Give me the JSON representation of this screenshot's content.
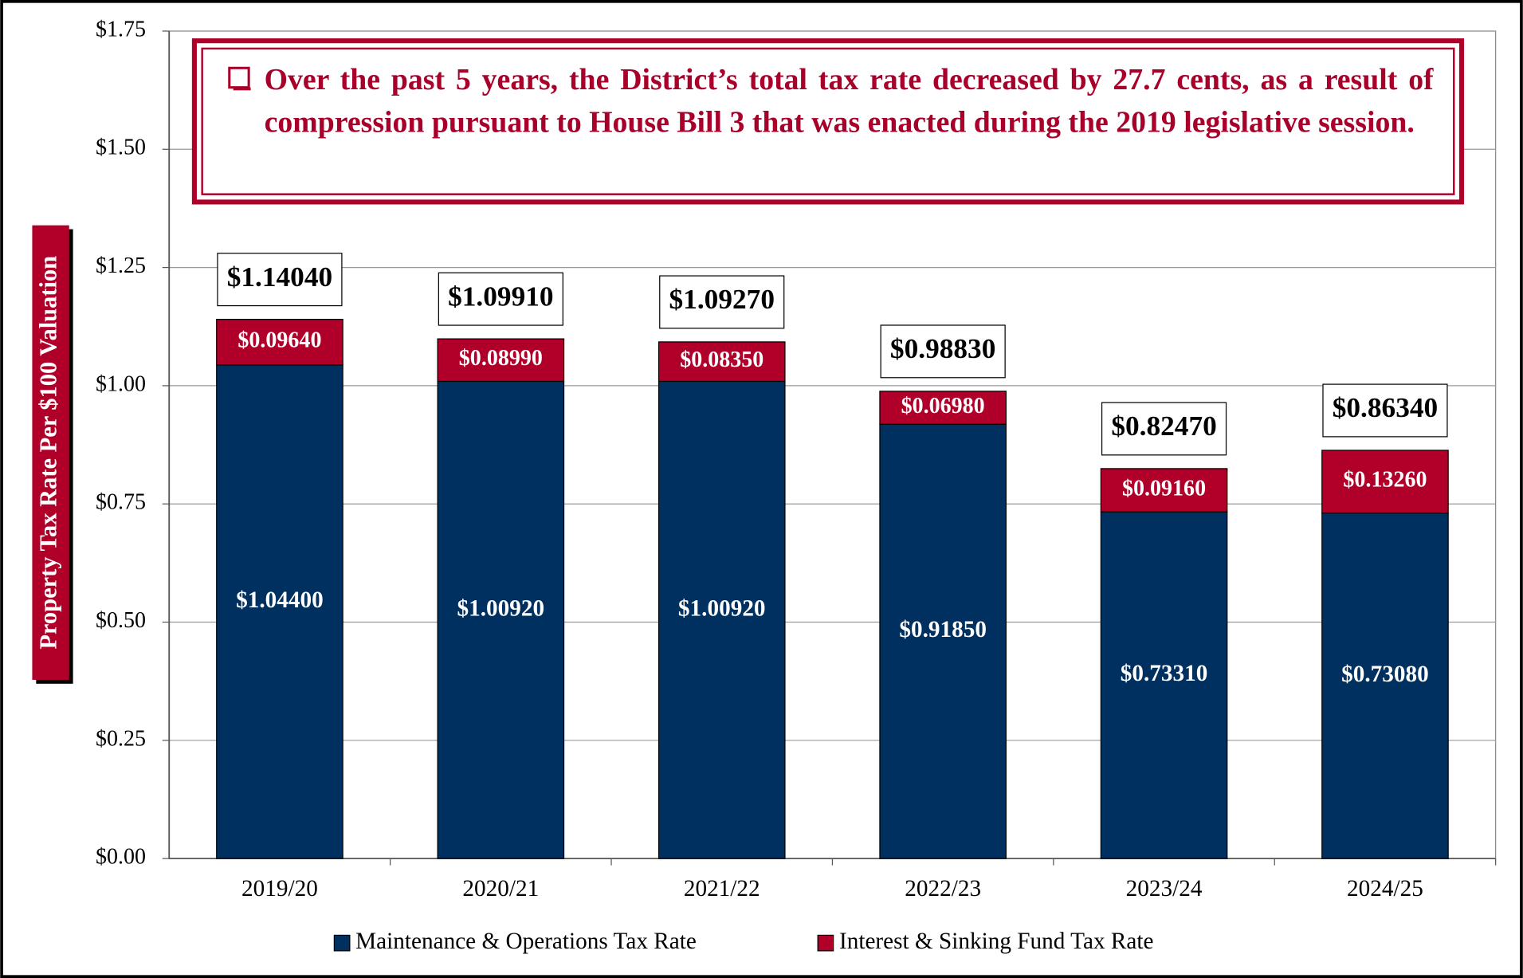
{
  "chart_data": {
    "type": "stacked-bar",
    "annotation": "Over the past 5 years, the District’s total tax rate decreased by 27.7 cents, as a result of compression pursuant to House Bill 3 that was enacted during the 2019 legislative session.",
    "y_label": "Property Tax Rate Per $100 Valuation",
    "categories": [
      "2019/20",
      "2020/21",
      "2021/22",
      "2022/23",
      "2023/24",
      "2024/25"
    ],
    "series": [
      {
        "name": "Maintenance & Operations Tax Rate",
        "color": "#00305f",
        "values": [
          1.044,
          1.0092,
          1.0092,
          0.9185,
          0.7331,
          0.7308
        ],
        "value_labels": [
          "$1.04400",
          "$1.00920",
          "$1.00920",
          "$0.91850",
          "$0.73310",
          "$0.73080"
        ]
      },
      {
        "name": "Interest & Sinking Fund Tax Rate",
        "color": "#b0002a",
        "values": [
          0.0964,
          0.0899,
          0.0835,
          0.0698,
          0.0916,
          0.1326
        ],
        "value_labels": [
          "$0.09640",
          "$0.08990",
          "$0.08350",
          "$0.06980",
          "$0.09160",
          "$0.13260"
        ]
      }
    ],
    "totals": {
      "values": [
        1.1404,
        1.0991,
        1.0927,
        0.9883,
        0.8247,
        0.8634
      ],
      "value_labels": [
        "$1.14040",
        "$1.09910",
        "$1.09270",
        "$0.98830",
        "$0.82470",
        "$0.86340"
      ]
    },
    "ylim": [
      0,
      1.75
    ],
    "yticks": [
      {
        "value": 0,
        "label": "$0.00"
      },
      {
        "value": 0.25,
        "label": "$0.25"
      },
      {
        "value": 0.5,
        "label": "$0.50"
      },
      {
        "value": 0.75,
        "label": "$0.75"
      },
      {
        "value": 1.0,
        "label": "$1.00"
      },
      {
        "value": 1.25,
        "label": "$1.25"
      },
      {
        "value": 1.5,
        "label": "$1.50"
      },
      {
        "value": 1.75,
        "label": "$1.75"
      }
    ],
    "grid": true,
    "legend": "bottom"
  }
}
